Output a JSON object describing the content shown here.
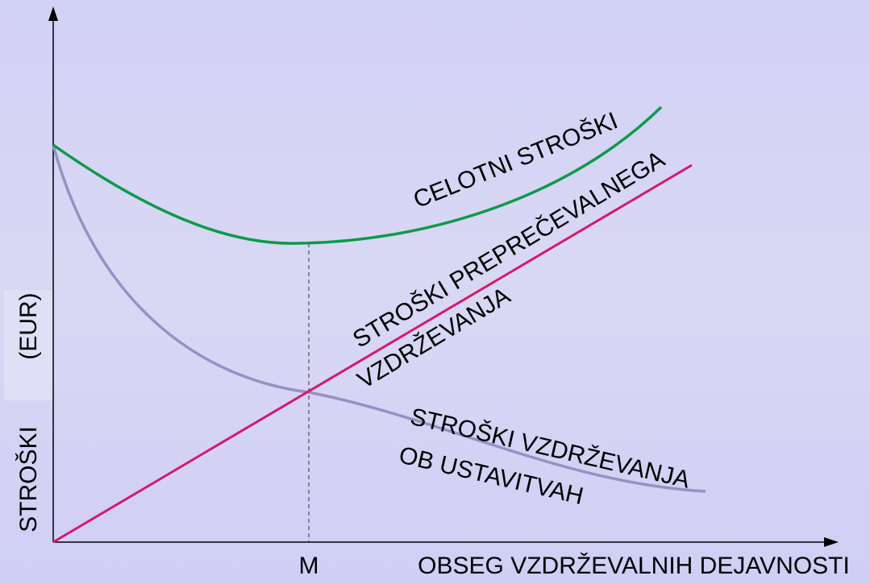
{
  "diagram": {
    "y_axis_label": {
      "part1": "STROŠKI",
      "part2": "(EUR)"
    },
    "x_axis_label": "OBSEG VZDRŽEVALNIH DEJAVNOSTI",
    "marker_label": "M",
    "curves": [
      {
        "label": [
          "CELOTNI STROŠKI"
        ]
      },
      {
        "label": [
          "STROŠKI PREPREČEVALNEGA",
          "VZDRŽEVANJA"
        ]
      },
      {
        "label": [
          "STROŠKI VZDRŽEVANJA",
          "OB USTAVITVAH"
        ]
      }
    ]
  }
}
